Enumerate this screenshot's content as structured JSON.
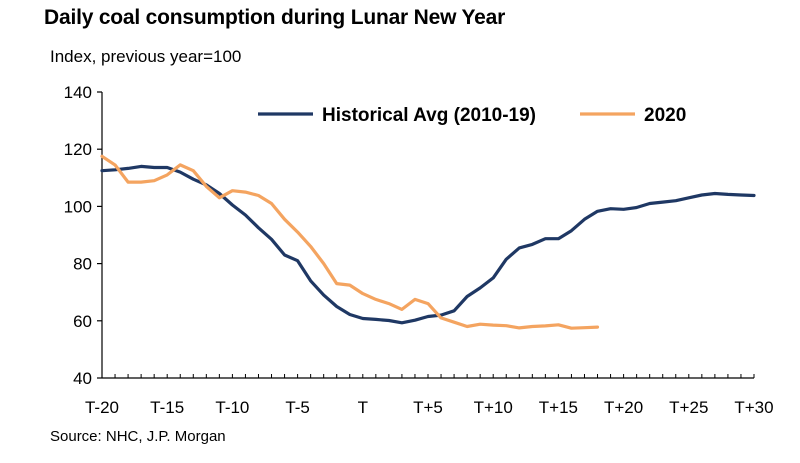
{
  "title": "Daily coal consumption during Lunar New Year",
  "subtitle": "Index, previous year=100",
  "source": "Source: NHC, J.P. Morgan",
  "chart_data": {
    "type": "line",
    "ylim": [
      40,
      140
    ],
    "y_ticks": [
      40,
      60,
      80,
      100,
      120,
      140
    ],
    "xlim": [
      -20,
      30
    ],
    "x_ticks": [
      {
        "x": -20,
        "label": "T-20"
      },
      {
        "x": -15,
        "label": "T-15"
      },
      {
        "x": -10,
        "label": "T-10"
      },
      {
        "x": -5,
        "label": "T-5"
      },
      {
        "x": 0,
        "label": "T"
      },
      {
        "x": 5,
        "label": "T+5"
      },
      {
        "x": 10,
        "label": "T+10"
      },
      {
        "x": 15,
        "label": "T+15"
      },
      {
        "x": 20,
        "label": "T+20"
      },
      {
        "x": 25,
        "label": "T+25"
      },
      {
        "x": 30,
        "label": "T+30"
      }
    ],
    "grid": false,
    "legend_position": "top",
    "series": [
      {
        "name": "Historical Avg (2010-19)",
        "color": "#1f3864",
        "x": [
          -20,
          -19,
          -18,
          -17,
          -16,
          -15,
          -14,
          -13,
          -12,
          -11,
          -10,
          -9,
          -8,
          -7,
          -6,
          -5,
          -4,
          -3,
          -2,
          -1,
          0,
          1,
          2,
          3,
          4,
          5,
          6,
          7,
          8,
          9,
          10,
          11,
          12,
          13,
          14,
          15,
          16,
          17,
          18,
          19,
          20,
          21,
          22,
          23,
          24,
          25,
          26,
          27,
          28,
          29,
          30
        ],
        "values": [
          112.5,
          112.8,
          113.3,
          114,
          113.6,
          113.6,
          112,
          109.5,
          107.5,
          104.5,
          100.5,
          97,
          92.5,
          88.5,
          83,
          81,
          74,
          69,
          65,
          62.2,
          60.8,
          60.5,
          60.1,
          59.3,
          60.2,
          61.5,
          62,
          63.5,
          68.5,
          71.5,
          75,
          81.5,
          85.5,
          86.7,
          88.7,
          88.7,
          91.5,
          95.5,
          98.3,
          99.2,
          99,
          99.6,
          101,
          101.5,
          102,
          103,
          104,
          104.5,
          104.2,
          104,
          103.8
        ]
      },
      {
        "name": "2020",
        "color": "#f4a460",
        "x": [
          -20,
          -19,
          -18,
          -17,
          -16,
          -15,
          -14,
          -13,
          -12,
          -11,
          -10,
          -9,
          -8,
          -7,
          -6,
          -5,
          -4,
          -3,
          -2,
          -1,
          0,
          1,
          2,
          3,
          4,
          5,
          6,
          7,
          8,
          9,
          10,
          11,
          12,
          13,
          14,
          15,
          16,
          17,
          18
        ],
        "values": [
          117.5,
          114.5,
          108.5,
          108.5,
          109,
          111,
          114.5,
          112.5,
          107,
          103,
          105.5,
          105,
          103.8,
          101,
          95.5,
          91,
          86,
          80,
          73,
          72.5,
          69.5,
          67.5,
          66,
          64,
          67.5,
          66,
          61,
          59.5,
          58,
          58.8,
          58.5,
          58.3,
          57.5,
          58,
          58.2,
          58.6,
          57.4,
          57.6,
          57.8
        ]
      }
    ]
  }
}
